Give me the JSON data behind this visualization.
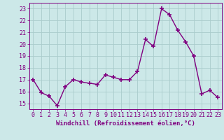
{
  "x": [
    0,
    1,
    2,
    3,
    4,
    5,
    6,
    7,
    8,
    9,
    10,
    11,
    12,
    13,
    14,
    15,
    16,
    17,
    18,
    19,
    20,
    21,
    22,
    23
  ],
  "y": [
    17.0,
    15.9,
    15.6,
    14.8,
    16.4,
    17.0,
    16.8,
    16.7,
    16.6,
    17.4,
    17.2,
    17.0,
    17.0,
    17.7,
    20.4,
    19.8,
    23.0,
    22.5,
    21.2,
    20.2,
    19.0,
    15.8,
    16.1,
    15.5
  ],
  "line_color": "#800080",
  "marker": "+",
  "marker_size": 4,
  "linewidth": 1.0,
  "bg_color": "#cce8e8",
  "grid_color": "#aacccc",
  "xlabel": "Windchill (Refroidissement éolien,°C)",
  "xlabel_color": "#800080",
  "tick_color": "#800080",
  "xlim": [
    -0.5,
    23.5
  ],
  "ylim": [
    14.5,
    23.5
  ],
  "yticks": [
    15,
    16,
    17,
    18,
    19,
    20,
    21,
    22,
    23
  ],
  "xticks": [
    0,
    1,
    2,
    3,
    4,
    5,
    6,
    7,
    8,
    9,
    10,
    11,
    12,
    13,
    14,
    15,
    16,
    17,
    18,
    19,
    20,
    21,
    22,
    23
  ],
  "xlabel_fontsize": 6.5,
  "tick_fontsize": 6.0
}
